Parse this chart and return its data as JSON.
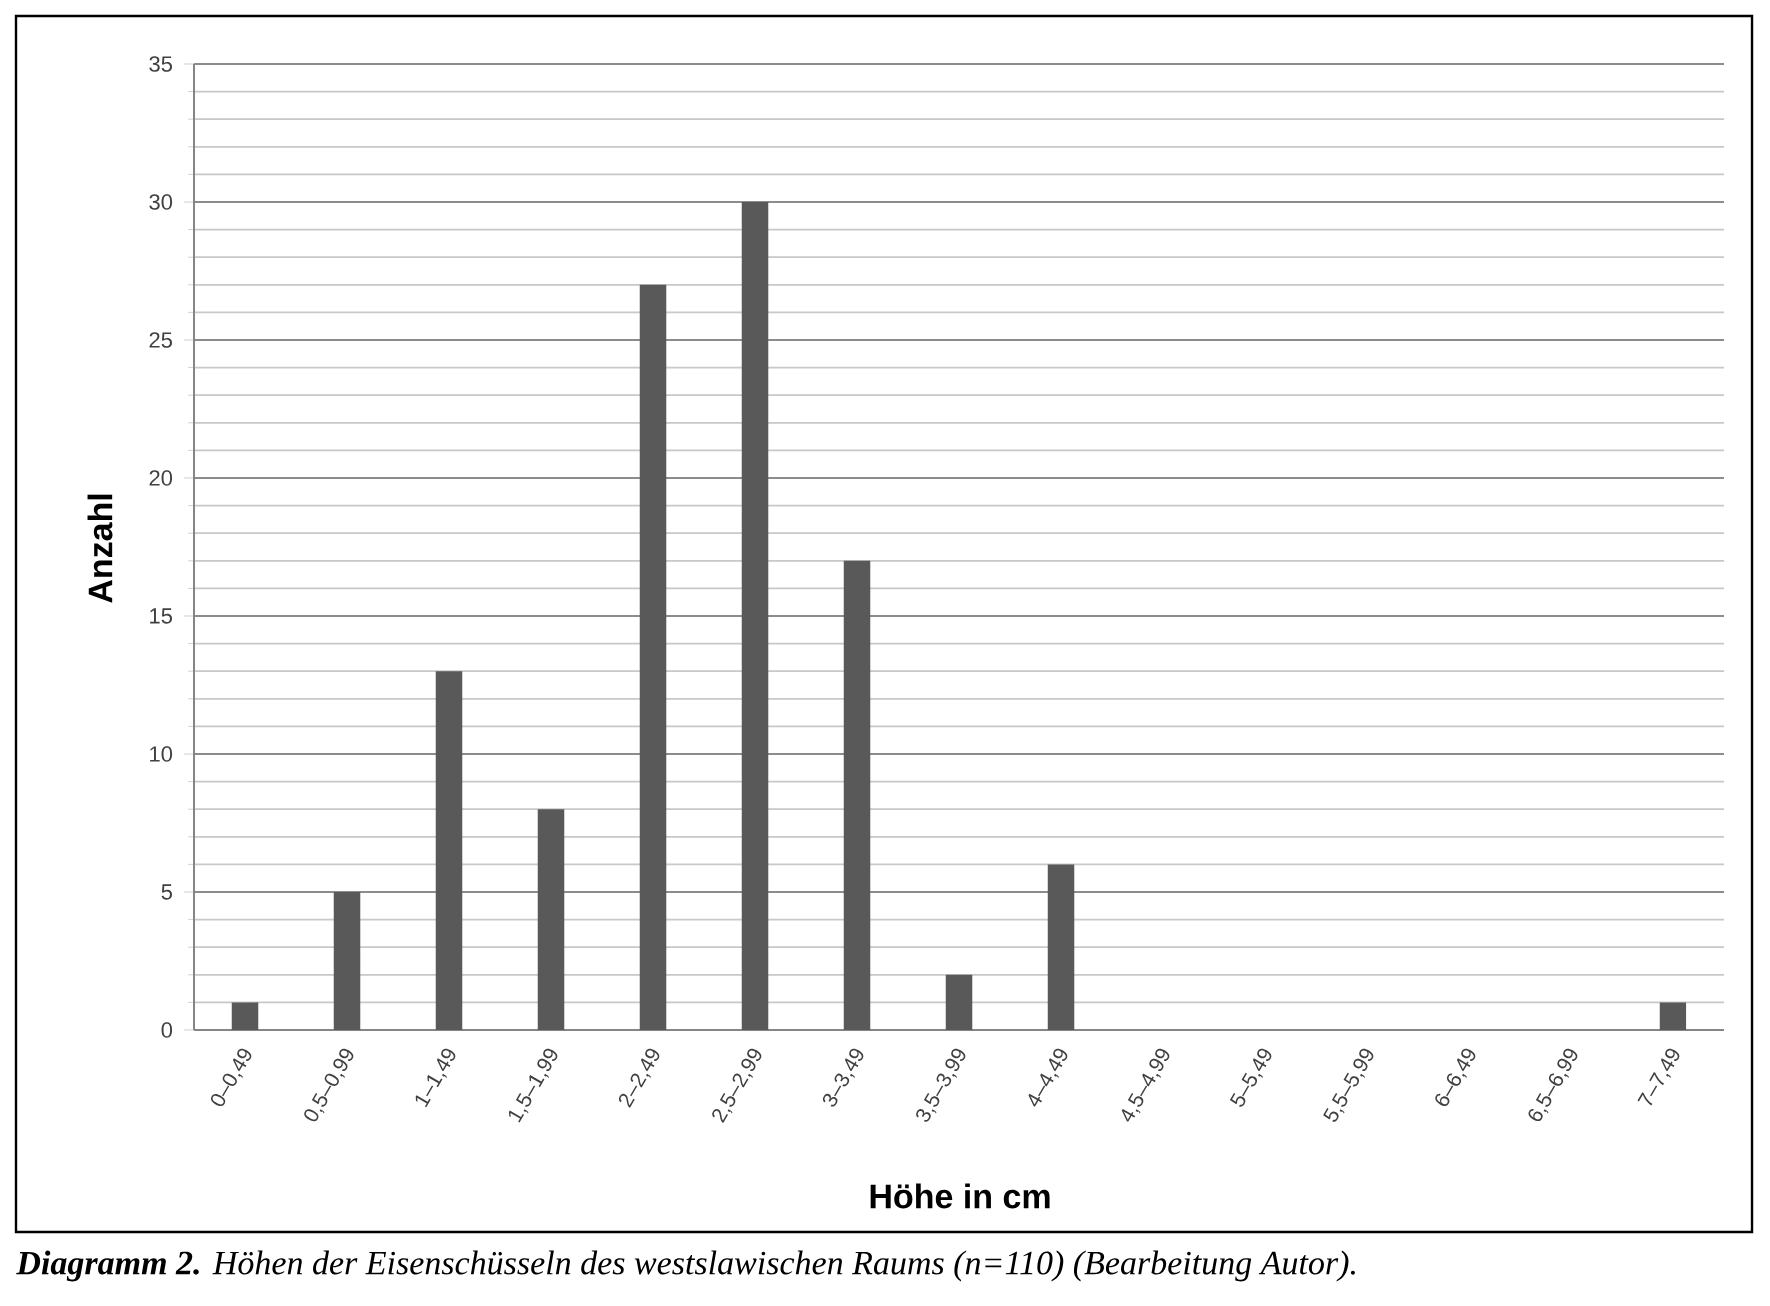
{
  "chart_data": {
    "type": "bar",
    "xlabel": "Höhe in cm",
    "ylabel": "Anzahl",
    "categories": [
      "0–0,49",
      "0,5–0,99",
      "1–1,49",
      "1,5–1,99",
      "2–2,49",
      "2,5–2,99",
      "3–3,49",
      "3,5–3,99",
      "4–4,49",
      "4,5–4,99",
      "5–5,49",
      "5,5–5,99",
      "6–6,49",
      "6,5–6,99",
      "7–7,49"
    ],
    "values": [
      1,
      5,
      13,
      8,
      27,
      30,
      17,
      2,
      6,
      0,
      0,
      0,
      0,
      0,
      1
    ],
    "color": "#595959",
    "ylim": [
      0,
      35
    ],
    "yticks": [
      0,
      5,
      10,
      15,
      20,
      25,
      30,
      35
    ],
    "grid": "y",
    "annotations": [
      "**Diagramm 2.** Höhen der Eisenschüsseln des westslawischen Raums (n=110) (Bearbeitung Autor)."
    ]
  }
}
